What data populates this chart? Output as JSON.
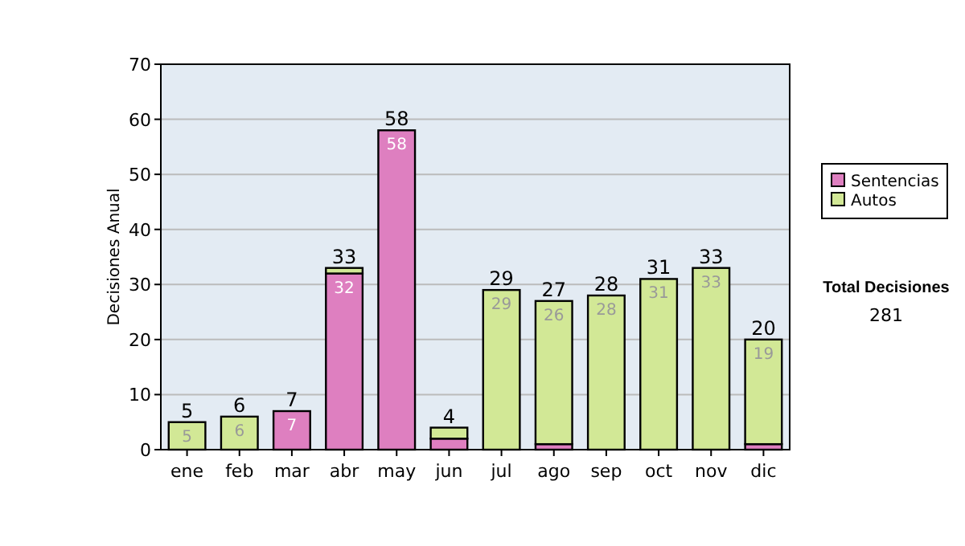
{
  "chart_data": {
    "type": "bar",
    "stacked": true,
    "ylabel": "Decisiones Anual",
    "categories": [
      "ene",
      "feb",
      "mar",
      "abr",
      "may",
      "jun",
      "jul",
      "ago",
      "sep",
      "oct",
      "nov",
      "dic"
    ],
    "series": [
      {
        "name": "Sentencias",
        "color": "#de7fc0",
        "values": [
          0,
          0,
          7,
          32,
          58,
          2,
          0,
          1,
          0,
          0,
          0,
          1
        ],
        "value_labels": [
          null,
          null,
          "7",
          "32",
          "58",
          null,
          null,
          null,
          null,
          null,
          null,
          null
        ]
      },
      {
        "name": "Autos",
        "color": "#d2e896",
        "values": [
          5,
          6,
          0,
          1,
          0,
          2,
          29,
          26,
          28,
          31,
          33,
          19
        ],
        "value_labels": [
          "5",
          "6",
          null,
          null,
          null,
          null,
          "29",
          "26",
          "28",
          "31",
          "33",
          "19"
        ]
      }
    ],
    "totals": [
      "5",
      "6",
      "7",
      "33",
      "58",
      "4",
      "29",
      "27",
      "28",
      "31",
      "33",
      "20"
    ],
    "ylim": [
      0,
      70
    ],
    "yticks": [
      0,
      10,
      20,
      30,
      40,
      50,
      60,
      70
    ],
    "grid": "y",
    "legend": "right",
    "annotations": [
      "Total Decisiones",
      "281"
    ]
  }
}
